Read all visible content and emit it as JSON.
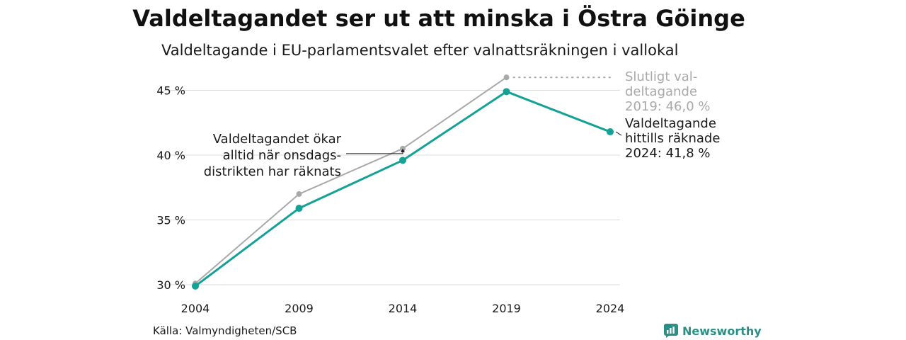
{
  "header": {
    "title": "Valdeltagandet ser ut att minska i Östra Göinge",
    "subtitle": "Valdeltagande i EU-parlamentsvalet efter valnattsräkningen i vallokal"
  },
  "footer": {
    "source": "Källa: Valmyndigheten/SCB",
    "brand": "Newsworthy"
  },
  "colors": {
    "accent": "#14a196",
    "final_series": "#a9a9a9",
    "grid": "#dcdcdc",
    "text": "#1a1a1a",
    "brand": "#2a8f86"
  },
  "chart_data": {
    "type": "line",
    "title": "Valdeltagandet ser ut att minska i Östra Göinge",
    "subtitle": "Valdeltagande i EU-parlamentsvalet efter valnattsräkningen i vallokal",
    "xlabel": "",
    "ylabel": "",
    "x": [
      2004,
      2009,
      2014,
      2019,
      2024
    ],
    "x_tick_labels": [
      "2004",
      "2009",
      "2014",
      "2019",
      "2024"
    ],
    "ylim": [
      30,
      46
    ],
    "y_ticks": [
      30,
      35,
      40,
      45
    ],
    "y_tick_labels": [
      "30 %",
      "35 %",
      "40 %",
      "45 %"
    ],
    "grid": true,
    "series": [
      {
        "key": "final",
        "color": "#a9a9a9",
        "values": [
          30.1,
          37.0,
          40.5,
          46.0,
          null
        ]
      },
      {
        "key": "counted",
        "color": "#14a196",
        "values": [
          29.9,
          35.9,
          39.6,
          44.9,
          41.8
        ]
      }
    ],
    "annotations": [
      {
        "key": "final_label",
        "lines": [
          "Slutligt val-",
          "deltagande",
          "2019: 46,0 %"
        ],
        "color": "#a9a9a9"
      },
      {
        "key": "counted_label",
        "lines": [
          "Valdeltagande",
          "hittills räknade",
          "2024: 41,8 %"
        ],
        "color": "#1a1a1a"
      },
      {
        "key": "wednesday_note",
        "lines": [
          "Valdeltagandet ökar",
          "alltid när onsdags-",
          "distrikten har räknats"
        ],
        "color": "#1a1a1a"
      }
    ]
  }
}
